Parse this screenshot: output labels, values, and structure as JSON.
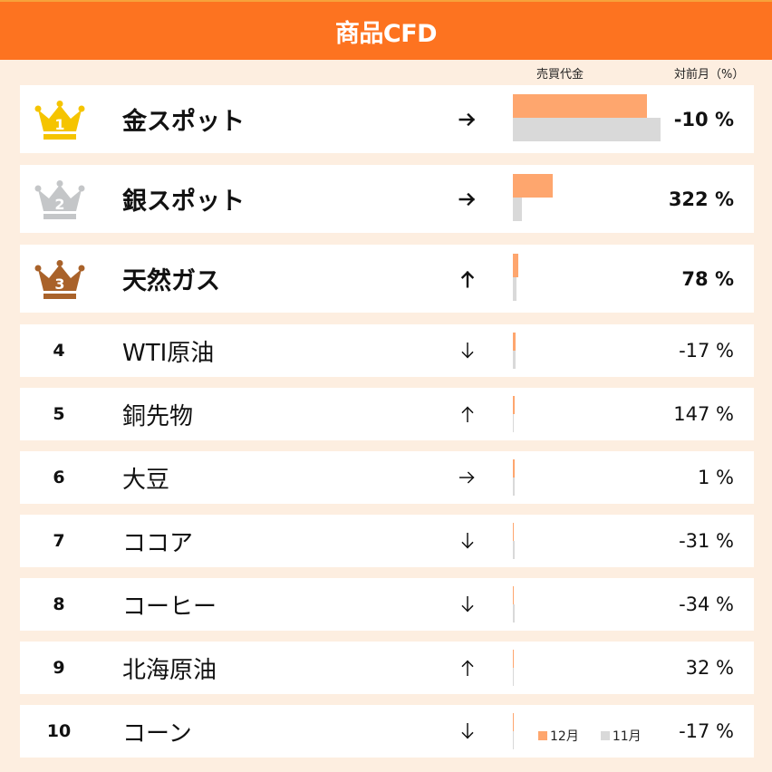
{
  "header": {
    "title": "商品CFD"
  },
  "columns": {
    "volume": "売買代金",
    "mom": "対前月（%）"
  },
  "colors": {
    "header_bg": "#fd7320",
    "page_bg": "#fdeee0",
    "current_bar": "#fea66e",
    "previous_bar": "#d9d9d9",
    "gold": "#f5c400",
    "silver": "#c4c6c8",
    "bronze": "#a9622a"
  },
  "legend": {
    "current": "12月",
    "previous": "11月"
  },
  "rows": [
    {
      "rank": "1",
      "name": "金スポット",
      "trend": "flat",
      "pct": "-10 %",
      "cur_w": 148,
      "prev_w": 163,
      "medal": "gold"
    },
    {
      "rank": "2",
      "name": "銀スポット",
      "trend": "flat",
      "pct": "322 %",
      "cur_w": 44,
      "prev_w": 10,
      "medal": "silver"
    },
    {
      "rank": "3",
      "name": "天然ガス",
      "trend": "up",
      "pct": "78 %",
      "cur_w": 6,
      "prev_w": 4,
      "medal": "bronze"
    },
    {
      "rank": "4",
      "name": "WTI原油",
      "trend": "down",
      "pct": "-17 %",
      "cur_w": 3,
      "prev_w": 3
    },
    {
      "rank": "5",
      "name": "銅先物",
      "trend": "up",
      "pct": "147 %",
      "cur_w": 1.5,
      "prev_w": 1
    },
    {
      "rank": "6",
      "name": "大豆",
      "trend": "flat",
      "pct": "1 %",
      "cur_w": 1.5,
      "prev_w": 1.5
    },
    {
      "rank": "7",
      "name": "ココア",
      "trend": "down",
      "pct": "-31 %",
      "cur_w": 1.2,
      "prev_w": 1.5
    },
    {
      "rank": "8",
      "name": "コーヒー",
      "trend": "down",
      "pct": "-34 %",
      "cur_w": 1.2,
      "prev_w": 1.5
    },
    {
      "rank": "9",
      "name": "北海原油",
      "trend": "up",
      "pct": "32 %",
      "cur_w": 1.2,
      "prev_w": 1
    },
    {
      "rank": "10",
      "name": "コーン",
      "trend": "down",
      "pct": "-17 %",
      "cur_w": 1,
      "prev_w": 1.2
    }
  ],
  "chart_data": {
    "type": "bar",
    "title": "商品CFD",
    "orientation": "horizontal",
    "categories": [
      "金スポット",
      "銀スポット",
      "天然ガス",
      "WTI原油",
      "銅先物",
      "大豆",
      "ココア",
      "コーヒー",
      "北海原油",
      "コーン"
    ],
    "series": [
      {
        "name": "12月",
        "color": "#fea66e",
        "values": [
          148,
          44,
          6,
          3,
          1.5,
          1.5,
          1.2,
          1.2,
          1.2,
          1
        ]
      },
      {
        "name": "11月",
        "color": "#d9d9d9",
        "values": [
          163,
          10,
          4,
          3,
          1,
          1.5,
          1.5,
          1.5,
          1,
          1.2
        ]
      }
    ],
    "month_over_month_pct": [
      -10,
      322,
      78,
      -17,
      147,
      1,
      -31,
      -34,
      32,
      -17
    ],
    "trend": [
      "flat",
      "flat",
      "up",
      "down",
      "up",
      "flat",
      "down",
      "down",
      "up",
      "down"
    ],
    "xlabel": "売買代金 (relative bar length, px)",
    "ylabel": "",
    "legend_position": "bottom-right",
    "grid": false
  }
}
